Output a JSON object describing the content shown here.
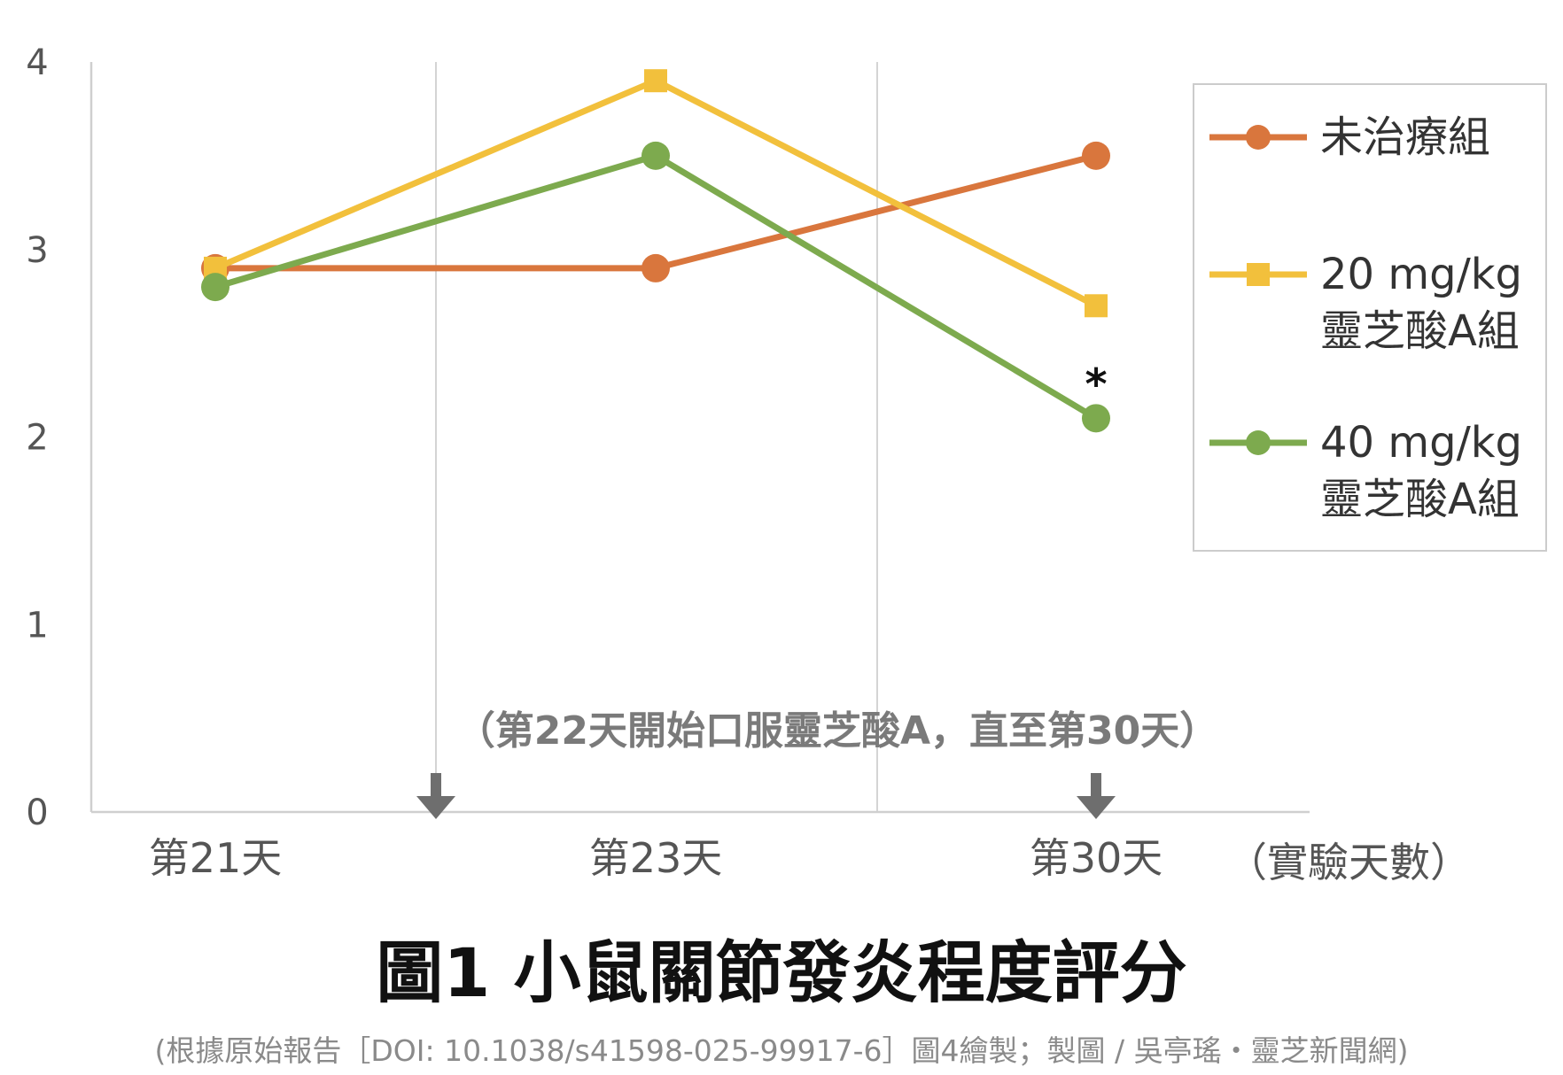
{
  "chart_data": {
    "type": "line",
    "title": "圖1  小鼠關節發炎程度評分",
    "source": "(根據原始報告［DOI: 10.1038/s41598-025-99917-6］圖4繪製；製圖 / 吳亭瑤・靈芝新聞網)",
    "annotation": "（第22天開始口服靈芝酸A，直至第30天）",
    "xlabel": "（實驗天數）",
    "ylabel": "",
    "categories": [
      "第21天",
      "第23天",
      "第30天"
    ],
    "yticks": [
      "0",
      "1",
      "2",
      "3",
      "4"
    ],
    "ylim": [
      0,
      4
    ],
    "grid": "vertical",
    "legend_position": "top-right",
    "series": [
      {
        "name": "未治療組",
        "color": "#D9763D",
        "marker": "circle",
        "values": [
          2.9,
          2.9,
          3.5
        ]
      },
      {
        "name": "20 mg/kg 靈芝酸A組",
        "name_lines": [
          "20 mg/kg",
          "靈芝酸A組"
        ],
        "color": "#F2C03C",
        "marker": "square",
        "values": [
          2.9,
          3.9,
          2.7
        ]
      },
      {
        "name": "40 mg/kg 靈芝酸A組",
        "name_lines": [
          "40 mg/kg",
          "靈芝酸A組"
        ],
        "color": "#7DAA4E",
        "marker": "circle",
        "values": [
          2.8,
          3.5,
          2.1
        ]
      }
    ],
    "significance": {
      "label": "*",
      "series": "40 mg/kg 靈芝酸A組",
      "category": "第30天"
    }
  }
}
